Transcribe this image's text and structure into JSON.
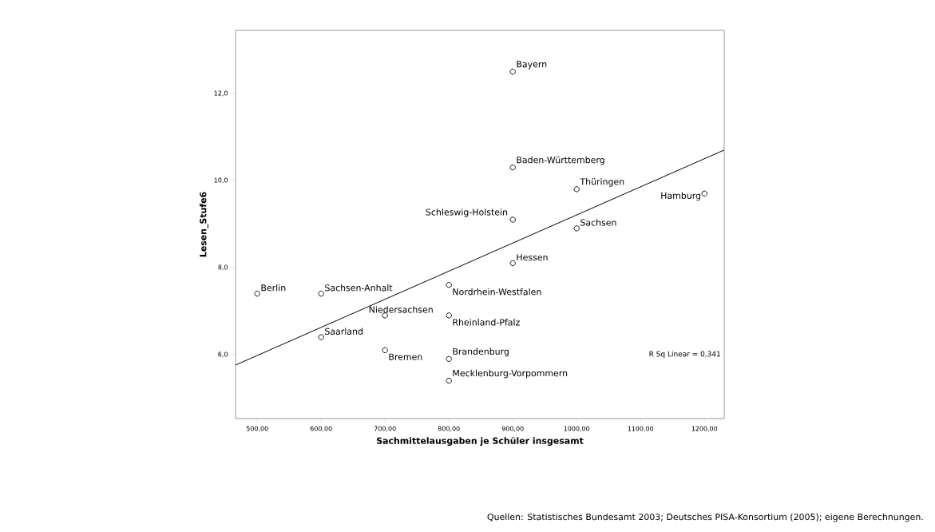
{
  "chart_data": {
    "type": "scatter",
    "xlabel": "Sachmittelausgaben je Schüler insgesamt",
    "ylabel": "Lesen_Stufe6",
    "x": [
      500,
      600,
      600,
      700,
      700,
      800,
      800,
      800,
      800,
      900,
      900,
      900,
      900,
      1000,
      1000,
      1200
    ],
    "series": [
      {
        "color": "#000000",
        "marker": "circle",
        "values": [
          7.4,
          7.4,
          6.4,
          6.9,
          6.1,
          7.6,
          6.9,
          5.9,
          5.4,
          8.1,
          9.1,
          10.3,
          12.5,
          8.9,
          9.8,
          9.7
        ]
      },
      {
        "type": "line",
        "color": "#000000",
        "marker": "none",
        "x": [
          466,
          1231
        ],
        "values": [
          5.76,
          10.7
        ]
      }
    ],
    "xlim": [
      466,
      1231
    ],
    "ylim": [
      4.53,
      13.45
    ],
    "xticks": [
      {
        "value": 500,
        "label": "500,00"
      },
      {
        "value": 600,
        "label": "600,00"
      },
      {
        "value": 700,
        "label": "700,00"
      },
      {
        "value": 800,
        "label": "800,00"
      },
      {
        "value": 900,
        "label": "900,00"
      },
      {
        "value": 1000,
        "label": "1000,00"
      },
      {
        "value": 1100,
        "label": "1100,00"
      },
      {
        "value": 1200,
        "label": "1200,00"
      }
    ],
    "yticks": [
      {
        "value": 6,
        "label": "6,0"
      },
      {
        "value": 8,
        "label": "8,0"
      },
      {
        "value": 10,
        "label": "10,0"
      },
      {
        "value": 12,
        "label": "12,0"
      }
    ],
    "grid": false,
    "annotations": [
      {
        "text": "Berlin",
        "x": 500,
        "y": 7.4
      },
      {
        "text": "Sachsen-Anhalt",
        "x": 600,
        "y": 7.4
      },
      {
        "text": "Saarland",
        "x": 600,
        "y": 6.4
      },
      {
        "text": "Niedersachsen",
        "x": 700,
        "y": 6.9
      },
      {
        "text": "Bremen",
        "x": 700,
        "y": 6.1
      },
      {
        "text": "Nordrhein-Westfalen",
        "x": 800,
        "y": 7.6
      },
      {
        "text": "Rheinland-Pfalz",
        "x": 800,
        "y": 6.9
      },
      {
        "text": "Brandenburg",
        "x": 800,
        "y": 5.9
      },
      {
        "text": "Mecklenburg-Vorpommern",
        "x": 800,
        "y": 5.4
      },
      {
        "text": "Hessen",
        "x": 900,
        "y": 8.1
      },
      {
        "text": "Schleswig-Holstein",
        "x": 900,
        "y": 9.1
      },
      {
        "text": "Baden-Württemberg",
        "x": 900,
        "y": 10.3
      },
      {
        "text": "Bayern",
        "x": 900,
        "y": 12.5
      },
      {
        "text": "Sachsen",
        "x": 1000,
        "y": 8.9
      },
      {
        "text": "Thüringen",
        "x": 1000,
        "y": 9.8
      },
      {
        "text": "Hamburg",
        "x": 1200,
        "y": 9.7
      },
      "R Sq Linear = 0,341",
      "Quellen: Statistisches Bundesamt 2003; Deutsches PISA-Konsortium (2005); eigene Berechnungen."
    ]
  }
}
